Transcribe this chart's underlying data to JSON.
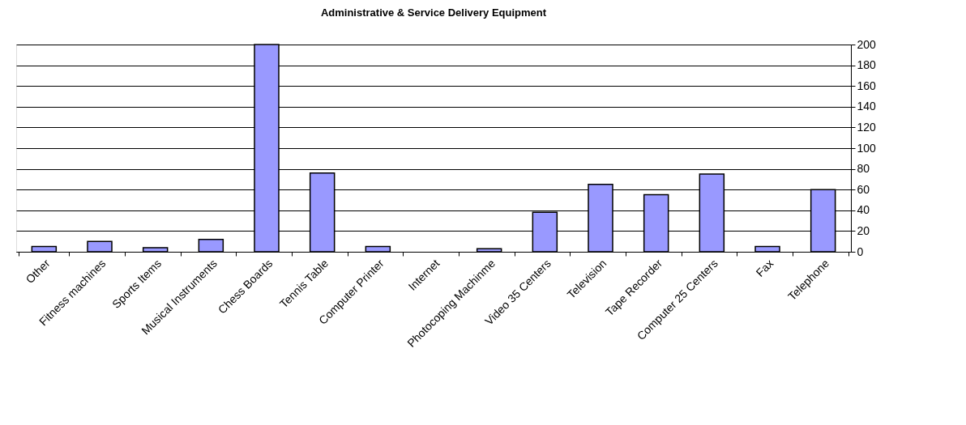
{
  "chart_data": {
    "type": "bar",
    "title": "Administrative & Service Delivery Equipment",
    "categories": [
      "Other",
      "Fitness machines",
      "Sports Items",
      "Musical Instruments",
      "Chess Boards",
      "Tennis Table",
      "Computer Printer",
      "Internet",
      "Photocoping Machinme",
      "Video  35 Centers",
      "Television",
      "Tape Recorder",
      "Computer  25 Centers",
      "Fax",
      "Telephone"
    ],
    "values": [
      5,
      10,
      4,
      12,
      200,
      76,
      5,
      0,
      3,
      38,
      65,
      55,
      75,
      5,
      60
    ],
    "color": "#9999ff",
    "ylim": [
      0,
      200
    ],
    "yticks": [
      0,
      20,
      40,
      60,
      80,
      100,
      120,
      140,
      160,
      180,
      200
    ],
    "grid": "y"
  }
}
